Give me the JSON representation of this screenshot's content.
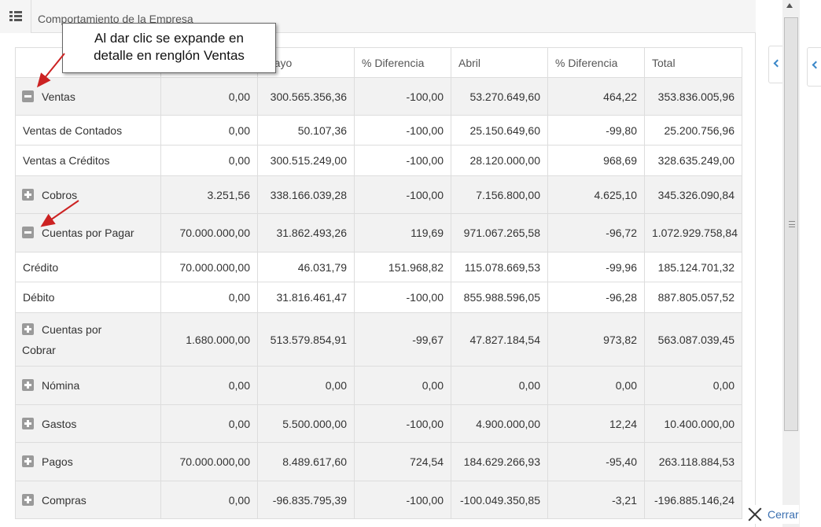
{
  "panel": {
    "title": "Comportamiento de la Empresa"
  },
  "callout": {
    "line1": "Al dar clic se expande en",
    "line2": "detalle en renglón Ventas"
  },
  "table": {
    "columns": [
      "",
      "",
      "Mayo",
      "% Diferencia",
      "Abril",
      "% Diferencia",
      "Total"
    ],
    "rows": [
      {
        "label": "Ventas",
        "label2": "",
        "toggle": "minus",
        "values": [
          "0,00",
          "300.565.356,36",
          "-100,00",
          "53.270.649,60",
          "464,22",
          "353.836.005,96"
        ]
      },
      {
        "label": "Ventas de Contados",
        "label2": "",
        "toggle": "",
        "values": [
          "0,00",
          "50.107,36",
          "-100,00",
          "25.150.649,60",
          "-99,80",
          "25.200.756,96"
        ]
      },
      {
        "label": "Ventas a Créditos",
        "label2": "",
        "toggle": "",
        "values": [
          "0,00",
          "300.515.249,00",
          "-100,00",
          "28.120.000,00",
          "968,69",
          "328.635.249,00"
        ]
      },
      {
        "label": "Cobros",
        "label2": "",
        "toggle": "plus",
        "values": [
          "3.251,56",
          "338.166.039,28",
          "-100,00",
          "7.156.800,00",
          "4.625,10",
          "345.326.090,84"
        ]
      },
      {
        "label": "Cuentas por Pagar",
        "label2": "",
        "toggle": "minus",
        "values": [
          "70.000.000,00",
          "31.862.493,26",
          "119,69",
          "971.067.265,58",
          "-96,72",
          "1.072.929.758,84"
        ]
      },
      {
        "label": "Crédito",
        "label2": "",
        "toggle": "",
        "values": [
          "70.000.000,00",
          "46.031,79",
          "151.968,82",
          "115.078.669,53",
          "-99,96",
          "185.124.701,32"
        ]
      },
      {
        "label": "Débito",
        "label2": "",
        "toggle": "",
        "values": [
          "0,00",
          "31.816.461,47",
          "-100,00",
          "855.988.596,05",
          "-96,28",
          "887.805.057,52"
        ]
      },
      {
        "label": "Cuentas por",
        "label2": "Cobrar",
        "toggle": "plus",
        "values": [
          "1.680.000,00",
          "513.579.854,91",
          "-99,67",
          "47.827.184,54",
          "973,82",
          "563.087.039,45"
        ]
      },
      {
        "label": "Nómina",
        "label2": "",
        "toggle": "plus",
        "values": [
          "0,00",
          "0,00",
          "0,00",
          "0,00",
          "0,00",
          "0,00"
        ]
      },
      {
        "label": "Gastos",
        "label2": "",
        "toggle": "plus",
        "values": [
          "0,00",
          "5.500.000,00",
          "-100,00",
          "4.900.000,00",
          "12,24",
          "10.400.000,00"
        ]
      },
      {
        "label": "Pagos",
        "label2": "",
        "toggle": "plus",
        "values": [
          "70.000.000,00",
          "8.489.617,60",
          "724,54",
          "184.629.266,93",
          "-95,40",
          "263.118.884,53"
        ]
      },
      {
        "label": "Compras",
        "label2": "",
        "toggle": "plus",
        "values": [
          "0,00",
          "-96.835.795,39",
          "-100,00",
          "-100.049.350,85",
          "-3,21",
          "-196.885.146,24"
        ]
      }
    ]
  },
  "footer": {
    "close_label": "Cerrar"
  },
  "icons": {
    "menu": "list-icon",
    "collapse": "minus-square-icon",
    "expand": "plus-square-icon",
    "side": "chevron-left-icon",
    "close": "close-icon"
  },
  "colors": {
    "link": "#3a6fb0",
    "callout_arrow": "#cc2222",
    "group_row": "#f2f2f2"
  }
}
